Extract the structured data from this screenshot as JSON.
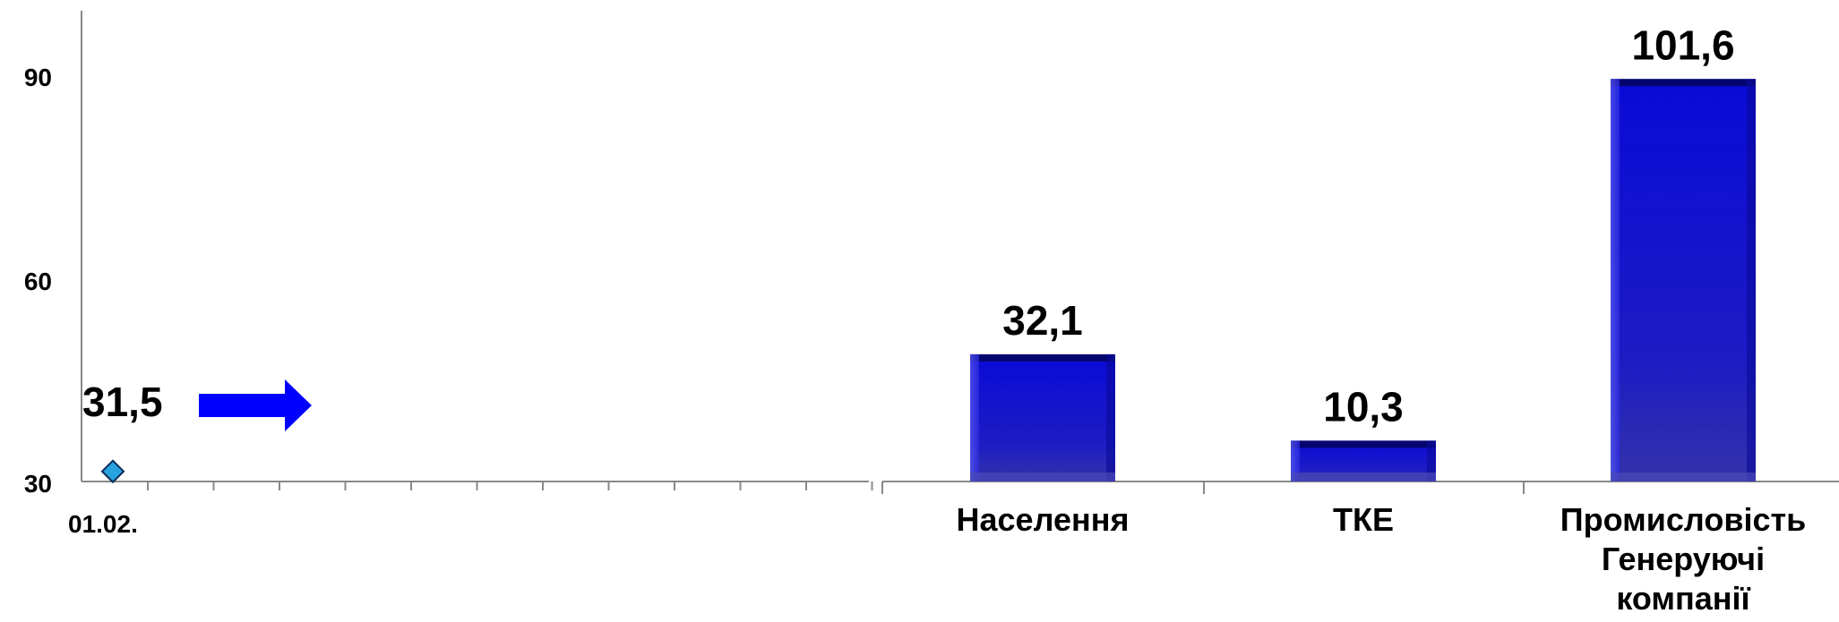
{
  "chart_data": [
    {
      "type": "scatter",
      "y_ticks": [
        "30",
        "60",
        "90"
      ],
      "ylim": [
        30,
        100
      ],
      "x_tick_labels": [
        "01.02."
      ],
      "points": [
        {
          "x": "01.02.",
          "y": 31.5,
          "label": "31,5"
        }
      ],
      "marker_color": "#29a3e0",
      "arrow_color": "#0000ff"
    },
    {
      "type": "bar",
      "categories": [
        "Населення",
        "ТКЕ",
        "Промисловість\nГенеруючі\nкомпанії"
      ],
      "category_lines": [
        [
          "Населення"
        ],
        [
          "ТКЕ"
        ],
        [
          "Промисловість",
          "Генеруючі",
          "компанії"
        ]
      ],
      "values": [
        32.1,
        10.3,
        101.6
      ],
      "value_labels": [
        "32,1",
        "10,3",
        "101,6"
      ],
      "ylim": [
        0,
        110
      ],
      "bar_color": "#1414c8"
    }
  ]
}
